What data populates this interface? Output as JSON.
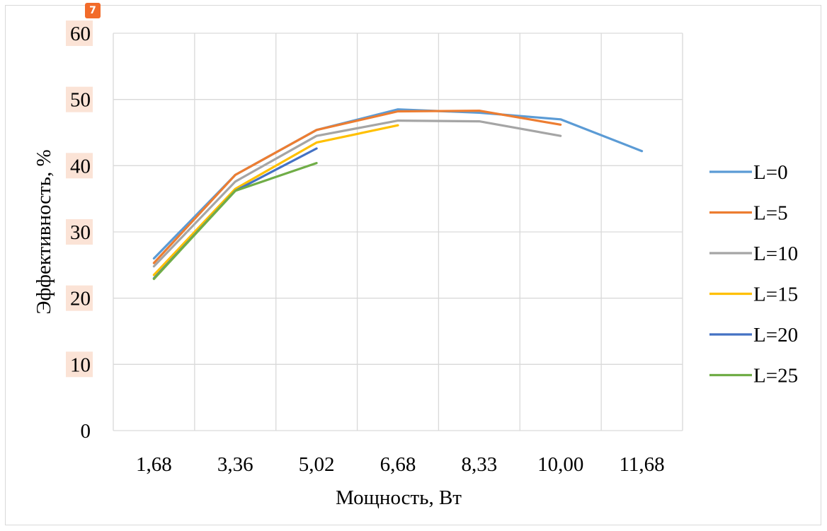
{
  "badge": "7",
  "chart_data": {
    "type": "line",
    "title": "",
    "xlabel": "Мощность, Вт",
    "ylabel": "Эффективность, %",
    "categories": [
      "1,68",
      "3,36",
      "5,02",
      "6,68",
      "8,33",
      "10,00",
      "11,68"
    ],
    "yticks": [
      "0",
      "10",
      "20",
      "30",
      "40",
      "50",
      "60"
    ],
    "ylim": [
      0,
      60
    ],
    "grid": true,
    "legend_position": "right",
    "series": [
      {
        "name": "L=0",
        "color": "#5b9bd5",
        "values": [
          26.0,
          38.6,
          45.4,
          48.5,
          48.0,
          47.0,
          42.2
        ]
      },
      {
        "name": "L=5",
        "color": "#ed7d31",
        "values": [
          25.3,
          38.6,
          45.4,
          48.2,
          48.3,
          46.2,
          null
        ]
      },
      {
        "name": "L=10",
        "color": "#a5a5a5",
        "values": [
          24.8,
          37.6,
          44.5,
          46.8,
          46.7,
          44.5,
          null
        ]
      },
      {
        "name": "L=15",
        "color": "#ffc000",
        "values": [
          23.5,
          36.5,
          43.5,
          46.1,
          null,
          null,
          null
        ]
      },
      {
        "name": "L=20",
        "color": "#4472c4",
        "values": [
          23.0,
          36.2,
          42.6,
          null,
          null,
          null,
          null
        ]
      },
      {
        "name": "L=25",
        "color": "#70ad47",
        "values": [
          22.9,
          36.2,
          40.4,
          null,
          null,
          null,
          null
        ]
      }
    ]
  }
}
